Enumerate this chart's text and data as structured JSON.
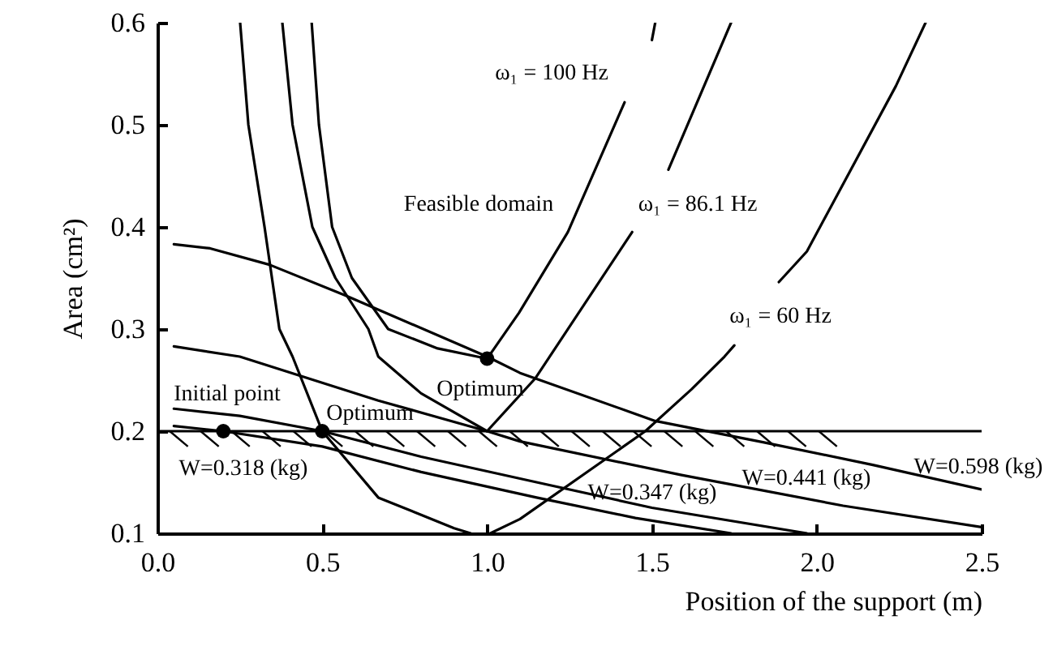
{
  "chart_data": {
    "type": "line",
    "xlabel": "Position of the support (m)",
    "ylabel": "Area (cm²)",
    "xlim": [
      0,
      2.5
    ],
    "ylim": [
      0.1,
      0.6
    ],
    "xticks": [
      {
        "value": 0,
        "label": "0.0"
      },
      0.5,
      {
        "value": 1,
        "label": "1.0"
      },
      1.5,
      {
        "value": 2,
        "label": "2.0"
      },
      2.5
    ],
    "yticks": [
      0.1,
      0.2,
      0.3,
      0.4,
      0.5,
      0.6
    ],
    "series": [
      {
        "color": "#000000",
        "x": [
          0.251,
          0.276,
          0.325,
          0.37,
          0.41,
          0.5,
          0.67,
          0.9,
          0.95
        ],
        "values": [
          0.6,
          0.5,
          0.4,
          0.3,
          0.273,
          0.2,
          0.135,
          0.105,
          0.1
        ]
      },
      {
        "color": "#000000",
        "x": [
          1.01,
          1.1,
          1.48,
          1.62,
          1.72,
          1.75
        ],
        "values": [
          0.1,
          0.114,
          0.2,
          0.241,
          0.273,
          0.284
        ]
      },
      {
        "color": "#000000",
        "x": [
          1.885,
          1.97,
          2.24,
          2.33
        ],
        "values": [
          0.346,
          0.376,
          0.538,
          0.6
        ]
      },
      {
        "color": "#000000",
        "x": [
          0.379,
          0.41,
          0.47,
          0.54,
          0.64,
          0.67,
          0.8,
          1.0,
          1.147,
          1.44
        ],
        "values": [
          0.6,
          0.5,
          0.4,
          0.35,
          0.3,
          0.273,
          0.237,
          0.2,
          0.252,
          0.395
        ]
      },
      {
        "color": "#000000",
        "x": [
          1.55,
          1.74
        ],
        "values": [
          0.456,
          0.6
        ]
      },
      {
        "color": "#000000",
        "x": [
          0.468,
          0.49,
          0.53,
          0.59,
          0.7,
          0.85,
          1.0,
          1.097,
          1.245,
          1.417
        ],
        "values": [
          0.6,
          0.5,
          0.4,
          0.35,
          0.3,
          0.281,
          0.271,
          0.316,
          0.395,
          0.522
        ]
      },
      {
        "color": "#000000",
        "x": [
          1.5,
          1.51
        ],
        "values": [
          0.583,
          0.6
        ]
      },
      {
        "color": "#000000",
        "x": [
          0.05,
          0.16,
          0.34,
          0.57,
          1.0,
          1.1,
          1.51,
          1.84,
          2.17,
          2.5
        ],
        "values": [
          0.383,
          0.379,
          0.363,
          0.333,
          0.273,
          0.257,
          0.21,
          0.189,
          0.167,
          0.143
        ]
      },
      {
        "color": "#000000",
        "x": [
          0.05,
          0.25,
          0.67,
          1.0,
          1.1,
          1.59,
          2.08,
          2.5
        ],
        "values": [
          0.283,
          0.273,
          0.23,
          0.2,
          0.19,
          0.157,
          0.127,
          0.106
        ]
      },
      {
        "color": "#000000",
        "x": [
          0.05,
          0.25,
          0.5,
          0.8,
          1.15,
          1.5,
          1.97
        ],
        "values": [
          0.222,
          0.215,
          0.2,
          0.175,
          0.15,
          0.125,
          0.1
        ]
      },
      {
        "color": "#000000",
        "x": [
          0.05,
          0.2,
          0.5,
          0.8,
          1.15,
          1.45,
          1.74
        ],
        "values": [
          0.205,
          0.2,
          0.185,
          0.16,
          0.135,
          0.115,
          0.1
        ]
      },
      {
        "type": "scatter",
        "color": "#000000",
        "marker": "circle",
        "x": [
          0.2,
          0.5,
          1.0
        ],
        "values": [
          0.2,
          0.2,
          0.271
        ]
      }
    ],
    "ref_lines": [
      {
        "axis": "y",
        "value": 0.2,
        "color": "#000000"
      }
    ],
    "annotations": [
      "Feasible domain",
      "ω₁ = 100 Hz",
      "ω₁ = 86.1 Hz",
      "ω₁ = 60 Hz",
      "Initial point",
      "Optimum",
      "Optimum",
      "W=0.318 (kg)",
      "W=0.347 (kg)",
      "W=0.441 (kg)",
      "W=0.598 (kg)"
    ]
  }
}
